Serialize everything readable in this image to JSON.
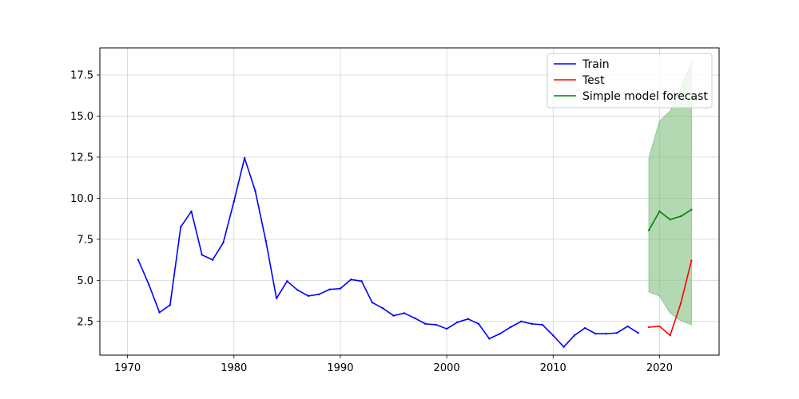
{
  "chart_data": {
    "type": "line",
    "title": "",
    "xlabel": "",
    "ylabel": "",
    "xlim": [
      1967.4,
      2025.6
    ],
    "ylim": [
      0.45,
      19.15
    ],
    "xticks": [
      1970,
      1980,
      1990,
      2000,
      2010,
      2020
    ],
    "yticks": [
      2.5,
      5.0,
      7.5,
      10.0,
      12.5,
      15.0,
      17.5
    ],
    "grid": true,
    "legend_position": "top-right",
    "series": [
      {
        "name": "Train",
        "color": "#0000ff",
        "x": [
          1971,
          1972,
          1973,
          1974,
          1975,
          1976,
          1977,
          1978,
          1979,
          1980,
          1981,
          1982,
          1983,
          1984,
          1985,
          1986,
          1987,
          1988,
          1989,
          1990,
          1991,
          1992,
          1993,
          1994,
          1995,
          1996,
          1997,
          1998,
          1999,
          2000,
          2001,
          2002,
          2003,
          2004,
          2005,
          2006,
          2007,
          2008,
          2009,
          2010,
          2011,
          2012,
          2013,
          2014,
          2015,
          2016,
          2017,
          2018
        ],
        "y": [
          6.25,
          4.75,
          3.05,
          3.5,
          8.25,
          9.2,
          6.55,
          6.25,
          7.3,
          9.8,
          12.45,
          10.45,
          7.4,
          3.9,
          4.95,
          4.4,
          4.05,
          4.15,
          4.45,
          4.5,
          5.05,
          4.95,
          3.65,
          3.3,
          2.85,
          3.0,
          2.7,
          2.35,
          2.3,
          2.05,
          2.45,
          2.65,
          2.35,
          1.45,
          1.75,
          2.15,
          2.5,
          2.35,
          2.3,
          1.65,
          0.95,
          1.65,
          2.1,
          1.75,
          1.75,
          1.8,
          2.2,
          1.8
        ]
      },
      {
        "name": "Test",
        "color": "#ff0000",
        "x": [
          2019,
          2020,
          2021,
          2022,
          2023
        ],
        "y": [
          2.15,
          2.2,
          1.65,
          3.6,
          6.2
        ]
      },
      {
        "name": "Simple model forecast",
        "color": "#008000",
        "x": [
          2019,
          2020,
          2021,
          2022,
          2023
        ],
        "y": [
          8.05,
          9.2,
          8.7,
          8.9,
          9.3
        ],
        "lower": [
          4.3,
          4.05,
          3.0,
          2.55,
          2.3
        ],
        "upper": [
          12.45,
          14.7,
          15.3,
          16.7,
          18.3
        ],
        "band_color": "#80c080"
      }
    ]
  }
}
